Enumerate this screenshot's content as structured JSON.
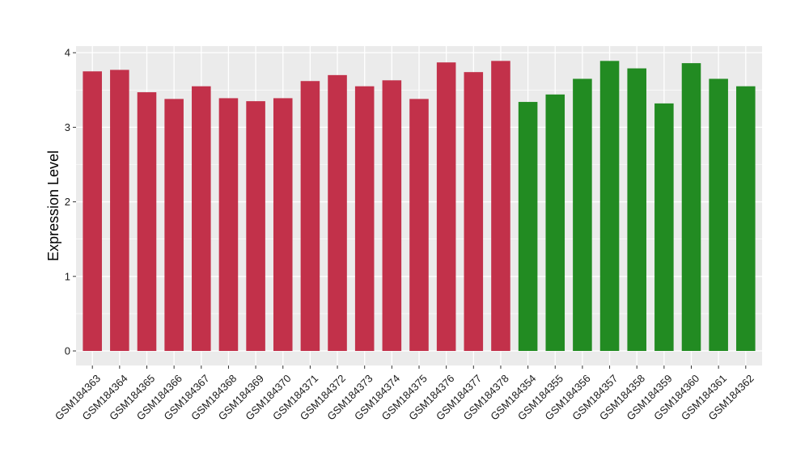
{
  "chart_data": {
    "type": "bar",
    "title": "",
    "xlabel": "",
    "ylabel": "Expression Level",
    "ylim": [
      0,
      4.1
    ],
    "yticks": [
      0,
      1,
      2,
      3,
      4
    ],
    "grid": true,
    "legend": "none",
    "categories": [
      "GSM184363",
      "GSM184364",
      "GSM184365",
      "GSM184366",
      "GSM184367",
      "GSM184368",
      "GSM184369",
      "GSM184370",
      "GSM184371",
      "GSM184372",
      "GSM184373",
      "GSM184374",
      "GSM184375",
      "GSM184376",
      "GSM184377",
      "GSM184378",
      "GSM184354",
      "GSM184355",
      "GSM184356",
      "GSM184357",
      "GSM184358",
      "GSM184359",
      "GSM184360",
      "GSM184361",
      "GSM184362"
    ],
    "values": [
      3.75,
      3.77,
      3.47,
      3.38,
      3.55,
      3.39,
      3.35,
      3.39,
      3.62,
      3.7,
      3.55,
      3.63,
      3.38,
      3.87,
      3.74,
      3.89,
      3.34,
      3.44,
      3.65,
      3.89,
      3.79,
      3.32,
      3.86,
      3.65,
      3.55
    ],
    "groups": [
      "a",
      "a",
      "a",
      "a",
      "a",
      "a",
      "a",
      "a",
      "a",
      "a",
      "a",
      "a",
      "a",
      "a",
      "a",
      "a",
      "b",
      "b",
      "b",
      "b",
      "b",
      "b",
      "b",
      "b",
      "b"
    ],
    "colors": {
      "a": "#c2314a",
      "b": "#228b22",
      "panel": "#ebebeb",
      "grid": "#ffffff"
    }
  }
}
